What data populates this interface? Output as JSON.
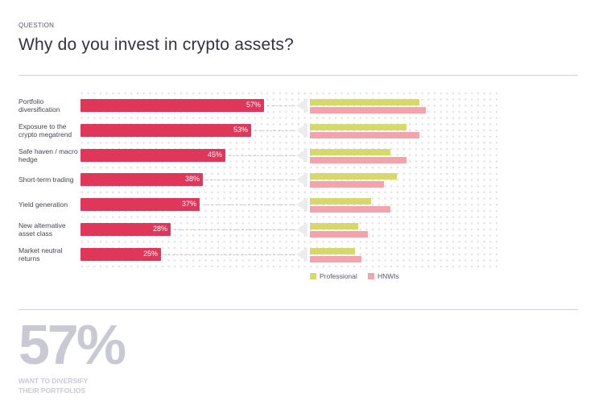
{
  "header": {
    "eyebrow": "QUESTION",
    "title": "Why do you invest in crypto assets?"
  },
  "colors": {
    "overall": "#e0365a",
    "professional": "#d6d86a",
    "hnwi": "#f2a3ab"
  },
  "chart_data": {
    "type": "bar",
    "title": "Why do you invest in crypto assets?",
    "categories": [
      "Portfolio diversification",
      "Exposure to the crypto megatrend",
      "Safe haven / macro hedge",
      "Short-term trading",
      "Yield generation",
      "New alternative asset class",
      "Market neutral returns"
    ],
    "overall": {
      "values": [
        57,
        53,
        45,
        38,
        37,
        28,
        25
      ],
      "labels": [
        "57%",
        "53%",
        "45%",
        "38%",
        "37%",
        "28%",
        "25%"
      ]
    },
    "series": [
      {
        "name": "Professional",
        "values": [
          34,
          30,
          25,
          27,
          19,
          15,
          14
        ]
      },
      {
        "name": "HNWIs",
        "values": [
          36,
          34,
          30,
          23,
          25,
          18,
          16
        ]
      }
    ],
    "legend": [
      "Professional",
      "HNWIs"
    ],
    "legend_position": "bottom-right",
    "grid": false
  },
  "callout": {
    "value": "57%",
    "caption_line1": "WANT TO DIVERSIFY",
    "caption_line2": "THEIR PORTFOLIOS"
  }
}
